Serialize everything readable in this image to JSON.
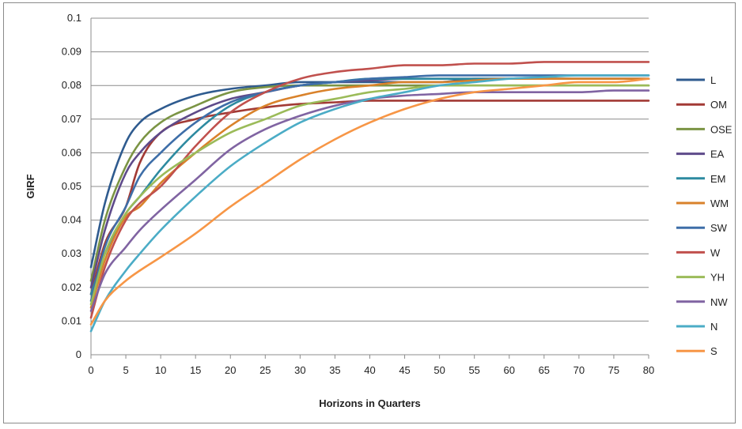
{
  "chart_data": {
    "type": "line",
    "title": "",
    "xlabel": "Horizons in Quarters",
    "ylabel": "GIRF",
    "xlim": [
      0,
      80
    ],
    "ylim": [
      0,
      0.1
    ],
    "x_ticks": [
      "0",
      "5",
      "10",
      "15",
      "20",
      "25",
      "30",
      "35",
      "40",
      "45",
      "50",
      "55",
      "60",
      "65",
      "70",
      "75",
      "80"
    ],
    "y_ticks": [
      "0",
      "0.01",
      "0.02",
      "0.03",
      "0.04",
      "0.05",
      "0.06",
      "0.07",
      "0.08",
      "0.09",
      "0.1"
    ],
    "grid": "horizontal",
    "legend_position": "right",
    "x": [
      0,
      2,
      5,
      7,
      10,
      15,
      20,
      25,
      30,
      35,
      40,
      45,
      50,
      55,
      60,
      65,
      70,
      75,
      80
    ],
    "series": [
      {
        "name": "L",
        "color": "#2f5b8f",
        "values": [
          0.026,
          0.045,
          0.063,
          0.069,
          0.073,
          0.077,
          0.079,
          0.08,
          0.081,
          0.081,
          0.081,
          0.081,
          0.081,
          0.082,
          0.082,
          0.082,
          0.082,
          0.082,
          0.082
        ]
      },
      {
        "name": "OM",
        "color": "#a23a35",
        "values": [
          0.018,
          0.033,
          0.044,
          0.057,
          0.066,
          0.07,
          0.072,
          0.0735,
          0.0745,
          0.075,
          0.0755,
          0.0755,
          0.0755,
          0.0755,
          0.0755,
          0.0755,
          0.0755,
          0.0755,
          0.0755
        ]
      },
      {
        "name": "OSE",
        "color": "#7b9444",
        "values": [
          0.022,
          0.04,
          0.056,
          0.063,
          0.069,
          0.074,
          0.078,
          0.0795,
          0.08,
          0.08,
          0.08,
          0.08,
          0.08,
          0.08,
          0.08,
          0.08,
          0.08,
          0.08,
          0.08
        ]
      },
      {
        "name": "EA",
        "color": "#5e4a8a",
        "values": [
          0.02,
          0.037,
          0.054,
          0.06,
          0.066,
          0.072,
          0.076,
          0.078,
          0.08,
          0.081,
          0.0815,
          0.082,
          0.082,
          0.082,
          0.082,
          0.082,
          0.082,
          0.082,
          0.082
        ]
      },
      {
        "name": "EM",
        "color": "#2d8aa0",
        "values": [
          0.018,
          0.03,
          0.042,
          0.047,
          0.055,
          0.066,
          0.074,
          0.078,
          0.08,
          0.081,
          0.082,
          0.082,
          0.082,
          0.082,
          0.082,
          0.082,
          0.082,
          0.082,
          0.082
        ]
      },
      {
        "name": "WM",
        "color": "#d9822b",
        "values": [
          0.014,
          0.028,
          0.041,
          0.044,
          0.051,
          0.06,
          0.068,
          0.074,
          0.077,
          0.079,
          0.08,
          0.081,
          0.081,
          0.0815,
          0.082,
          0.082,
          0.082,
          0.082,
          0.082
        ]
      },
      {
        "name": "SW",
        "color": "#3e6ea8",
        "values": [
          0.016,
          0.032,
          0.044,
          0.053,
          0.06,
          0.069,
          0.075,
          0.078,
          0.08,
          0.081,
          0.082,
          0.0825,
          0.083,
          0.083,
          0.083,
          0.083,
          0.083,
          0.083,
          0.083
        ]
      },
      {
        "name": "W",
        "color": "#c0504d",
        "values": [
          0.011,
          0.026,
          0.04,
          0.045,
          0.05,
          0.062,
          0.072,
          0.078,
          0.082,
          0.084,
          0.085,
          0.086,
          0.086,
          0.0865,
          0.0865,
          0.087,
          0.087,
          0.087,
          0.087
        ]
      },
      {
        "name": "YH",
        "color": "#9bbb59",
        "values": [
          0.015,
          0.03,
          0.042,
          0.047,
          0.053,
          0.06,
          0.066,
          0.07,
          0.074,
          0.076,
          0.078,
          0.079,
          0.08,
          0.08,
          0.08,
          0.08,
          0.08,
          0.08,
          0.08
        ]
      },
      {
        "name": "NW",
        "color": "#8064a2",
        "values": [
          0.013,
          0.024,
          0.032,
          0.037,
          0.043,
          0.052,
          0.061,
          0.067,
          0.071,
          0.074,
          0.076,
          0.077,
          0.0775,
          0.078,
          0.078,
          0.078,
          0.078,
          0.0785,
          0.0785
        ]
      },
      {
        "name": "N",
        "color": "#4bacc6",
        "values": [
          0.007,
          0.016,
          0.025,
          0.03,
          0.037,
          0.047,
          0.056,
          0.063,
          0.069,
          0.073,
          0.076,
          0.078,
          0.08,
          0.081,
          0.082,
          0.0825,
          0.083,
          0.083,
          0.083
        ]
      },
      {
        "name": "S",
        "color": "#f79646",
        "values": [
          0.009,
          0.016,
          0.022,
          0.025,
          0.029,
          0.036,
          0.044,
          0.051,
          0.058,
          0.064,
          0.069,
          0.073,
          0.076,
          0.078,
          0.079,
          0.08,
          0.081,
          0.081,
          0.082
        ]
      }
    ]
  }
}
